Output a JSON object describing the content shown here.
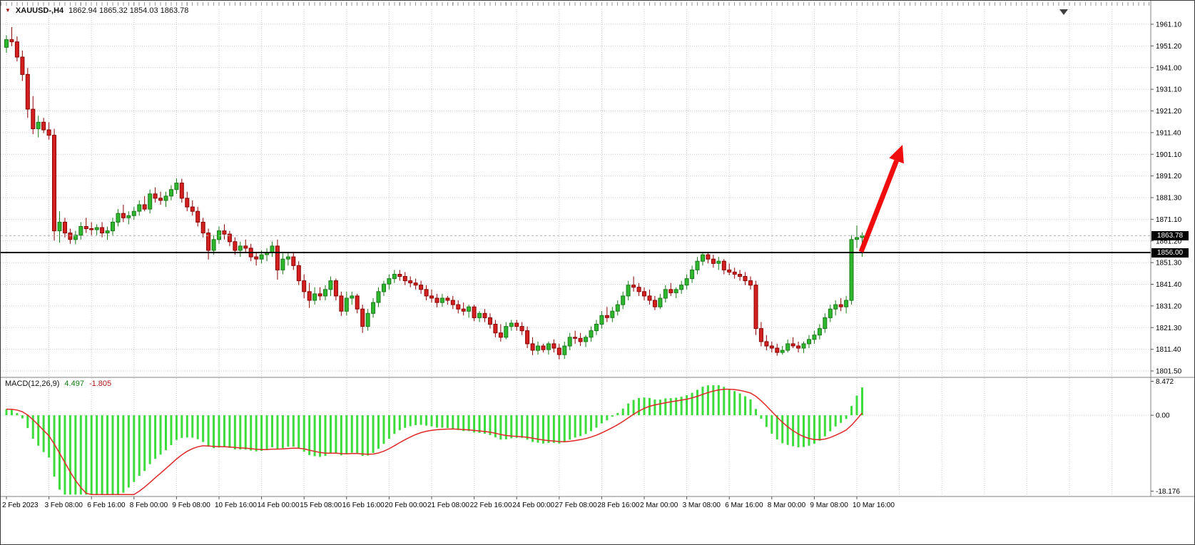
{
  "header": {
    "symbol_period": "XAUUSD-,H4",
    "ohlc_text": "1862.94 1865.32 1854.03 1863.78"
  },
  "price_axis": {
    "current_price_tag": "1863.78",
    "line_price_tag": "1856.00"
  },
  "macd_panel": {
    "label": "MACD(12,26,9)",
    "main_value": "4.497",
    "signal_value": "-1.805"
  },
  "colors": {
    "bull_fill": "#2eb82e",
    "bull_border": "#1a7a1a",
    "bear_fill": "#d42020",
    "bear_border": "#8b0000",
    "macd_histogram": "#3ddc3d",
    "macd_signal": "#e02828",
    "grid": "#c9c9c9",
    "separator": "#808080",
    "arrow": "#f00d0d",
    "line": "#000000",
    "tag_bg": "#000000"
  },
  "chart_data": [
    {
      "type": "candlestick",
      "symbol": "XAUUSD-",
      "timeframe": "H4",
      "bars_per_x_label": 8,
      "x_labels": [
        "2 Feb 2023",
        "3 Feb 08:00",
        "6 Feb 16:00",
        "8 Feb 00:00",
        "9 Feb 08:00",
        "10 Feb 16:00",
        "14 Feb 00:00",
        "15 Feb 08:00",
        "16 Feb 16:00",
        "20 Feb 00:00",
        "21 Feb 08:00",
        "22 Feb 16:00",
        "24 Feb 00:00",
        "27 Feb 08:00",
        "28 Feb 16:00",
        "2 Mar 00:00",
        "3 Mar 08:00",
        "6 Mar 16:00",
        "8 Mar 00:00",
        "9 Mar 08:00",
        "10 Mar 16:00"
      ],
      "y_ticks": [
        "1961.10",
        "1951.20",
        "1941.00",
        "1931.10",
        "1921.20",
        "1911.40",
        "1901.10",
        "1891.20",
        "1881.30",
        "1871.10",
        "1861.20",
        "1851.30",
        "1841.40",
        "1831.20",
        "1821.30",
        "1811.40",
        "1801.50"
      ],
      "y_range": [
        1801.5,
        1961.1
      ],
      "grid": true,
      "ohlc": [
        [
          1950.5,
          1956,
          1948,
          1954
        ],
        [
          1954,
          1959.8,
          1951,
          1953
        ],
        [
          1953,
          1955.5,
          1944,
          1946
        ],
        [
          1946,
          1949,
          1935,
          1938
        ],
        [
          1938,
          1941,
          1918,
          1922
        ],
        [
          1922,
          1928,
          1910.5,
          1913
        ],
        [
          1913,
          1919,
          1909,
          1916
        ],
        [
          1916,
          1918,
          1911,
          1912.5
        ],
        [
          1912.5,
          1916,
          1908,
          1910
        ],
        [
          1910,
          1913,
          1861.5,
          1866
        ],
        [
          1866,
          1875,
          1860.5,
          1870
        ],
        [
          1870,
          1872,
          1863,
          1865
        ],
        [
          1865,
          1867,
          1860,
          1862
        ],
        [
          1862,
          1866,
          1859.8,
          1864
        ],
        [
          1864,
          1870,
          1862,
          1868
        ],
        [
          1868,
          1872,
          1865,
          1867
        ],
        [
          1867,
          1870,
          1864,
          1866.5
        ],
        [
          1866.5,
          1869,
          1864,
          1867.5
        ],
        [
          1867.5,
          1870,
          1863,
          1865
        ],
        [
          1865,
          1868,
          1861.8,
          1866
        ],
        [
          1866,
          1872,
          1864,
          1870
        ],
        [
          1870,
          1876,
          1868,
          1874
        ],
        [
          1874,
          1878,
          1870,
          1872
        ],
        [
          1872,
          1875,
          1869,
          1873
        ],
        [
          1873,
          1877,
          1871,
          1875
        ],
        [
          1875,
          1880,
          1873,
          1878
        ],
        [
          1878,
          1882,
          1875,
          1876
        ],
        [
          1876,
          1885,
          1874,
          1883
        ],
        [
          1883,
          1886,
          1879,
          1881
        ],
        [
          1881,
          1884,
          1878,
          1880
        ],
        [
          1880,
          1884,
          1877,
          1882
        ],
        [
          1882,
          1887,
          1880,
          1885
        ],
        [
          1885,
          1890.2,
          1883,
          1888
        ],
        [
          1888,
          1890,
          1879,
          1881
        ],
        [
          1881,
          1884,
          1875,
          1877
        ],
        [
          1877,
          1880,
          1873,
          1875
        ],
        [
          1875,
          1877,
          1868,
          1870
        ],
        [
          1870,
          1872,
          1863,
          1865
        ],
        [
          1865,
          1867,
          1852.8,
          1857
        ],
        [
          1857,
          1864,
          1855,
          1862
        ],
        [
          1862,
          1868,
          1860,
          1866
        ],
        [
          1866,
          1869,
          1862,
          1864.5
        ],
        [
          1864.5,
          1866,
          1859,
          1861
        ],
        [
          1861,
          1863,
          1855,
          1857
        ],
        [
          1857,
          1861,
          1854,
          1859
        ],
        [
          1859,
          1862,
          1856,
          1858
        ],
        [
          1858,
          1860,
          1852,
          1854
        ],
        [
          1854,
          1856,
          1850,
          1853
        ],
        [
          1853,
          1857,
          1851,
          1855
        ],
        [
          1855,
          1858,
          1852,
          1856
        ],
        [
          1856,
          1861,
          1854,
          1859
        ],
        [
          1859,
          1862,
          1843.5,
          1848
        ],
        [
          1848,
          1856,
          1846,
          1853
        ],
        [
          1853,
          1856,
          1850,
          1854
        ],
        [
          1854,
          1856,
          1848,
          1850
        ],
        [
          1850,
          1852,
          1841,
          1843
        ],
        [
          1843,
          1846,
          1835,
          1838
        ],
        [
          1838,
          1842,
          1830.5,
          1834
        ],
        [
          1834,
          1840,
          1832,
          1837
        ],
        [
          1837,
          1840,
          1834,
          1836
        ],
        [
          1836,
          1841,
          1834,
          1839
        ],
        [
          1839,
          1845,
          1836,
          1843
        ],
        [
          1843,
          1844,
          1834,
          1836
        ],
        [
          1836,
          1838,
          1826.8,
          1829
        ],
        [
          1829,
          1838,
          1827,
          1835
        ],
        [
          1835,
          1838,
          1832,
          1836
        ],
        [
          1836,
          1837,
          1828,
          1830
        ],
        [
          1830,
          1832,
          1819,
          1822
        ],
        [
          1822,
          1830,
          1820,
          1828
        ],
        [
          1828,
          1835,
          1826,
          1833
        ],
        [
          1833,
          1840,
          1831,
          1838
        ],
        [
          1838,
          1843,
          1836,
          1841.5
        ],
        [
          1841.5,
          1846,
          1839,
          1844
        ],
        [
          1844,
          1848,
          1842,
          1846
        ],
        [
          1846,
          1848,
          1843,
          1845
        ],
        [
          1845,
          1847,
          1841,
          1843
        ],
        [
          1843,
          1845,
          1840,
          1842
        ],
        [
          1842,
          1844,
          1839,
          1841
        ],
        [
          1841,
          1843,
          1837,
          1839
        ],
        [
          1839,
          1841,
          1834,
          1836
        ],
        [
          1836,
          1839,
          1833,
          1835
        ],
        [
          1835,
          1837,
          1830.8,
          1833
        ],
        [
          1833,
          1837,
          1831,
          1835
        ],
        [
          1835,
          1836,
          1832,
          1834
        ],
        [
          1834,
          1836,
          1830,
          1832
        ],
        [
          1832,
          1834,
          1828,
          1830
        ],
        [
          1830,
          1833,
          1827,
          1829
        ],
        [
          1829,
          1832,
          1826,
          1831
        ],
        [
          1831,
          1832,
          1824.4,
          1826
        ],
        [
          1826,
          1829,
          1824,
          1828
        ],
        [
          1828,
          1830,
          1824,
          1826
        ],
        [
          1826,
          1828,
          1821,
          1823
        ],
        [
          1823,
          1825,
          1817,
          1819
        ],
        [
          1819,
          1823,
          1815,
          1817
        ],
        [
          1817,
          1824,
          1816,
          1822
        ],
        [
          1822,
          1825,
          1820,
          1823.5
        ],
        [
          1823.5,
          1825,
          1820,
          1822
        ],
        [
          1822,
          1824,
          1818,
          1820
        ],
        [
          1820,
          1822,
          1812,
          1814
        ],
        [
          1814,
          1817,
          1808.8,
          1811
        ],
        [
          1811,
          1815,
          1809,
          1813
        ],
        [
          1813,
          1814,
          1810,
          1811.3
        ],
        [
          1811.3,
          1815,
          1809,
          1814
        ],
        [
          1814,
          1816,
          1810,
          1812
        ],
        [
          1812,
          1814,
          1806.8,
          1809
        ],
        [
          1809,
          1815,
          1807,
          1813
        ],
        [
          1813,
          1819,
          1811,
          1817
        ],
        [
          1817,
          1820,
          1814,
          1816.5
        ],
        [
          1816.5,
          1819,
          1813,
          1815
        ],
        [
          1815,
          1818,
          1812.5,
          1817
        ],
        [
          1817,
          1822,
          1815,
          1820
        ],
        [
          1820,
          1825,
          1818,
          1823
        ],
        [
          1823,
          1829,
          1821,
          1827
        ],
        [
          1827,
          1831,
          1824,
          1826
        ],
        [
          1826,
          1831,
          1824,
          1829
        ],
        [
          1829,
          1834,
          1827,
          1832
        ],
        [
          1832,
          1838,
          1830,
          1836
        ],
        [
          1836,
          1843,
          1834,
          1841
        ],
        [
          1841,
          1845,
          1838,
          1840
        ],
        [
          1840,
          1842,
          1836,
          1838
        ],
        [
          1838,
          1840,
          1834,
          1836
        ],
        [
          1836,
          1839,
          1832,
          1834
        ],
        [
          1834,
          1836,
          1829.5,
          1831
        ],
        [
          1831,
          1837,
          1830,
          1835
        ],
        [
          1835,
          1841,
          1833,
          1839
        ],
        [
          1839,
          1842,
          1836,
          1837.5
        ],
        [
          1837.5,
          1840,
          1835,
          1839
        ],
        [
          1839,
          1843,
          1837,
          1841
        ],
        [
          1841,
          1846,
          1839,
          1844
        ],
        [
          1844,
          1850,
          1842,
          1848
        ],
        [
          1848,
          1854,
          1846,
          1852
        ],
        [
          1852,
          1856.3,
          1850,
          1855
        ],
        [
          1855,
          1856,
          1851,
          1853
        ],
        [
          1853,
          1855,
          1849,
          1851
        ],
        [
          1851,
          1854,
          1848,
          1852
        ],
        [
          1852,
          1853,
          1846,
          1848
        ],
        [
          1848,
          1851,
          1845.6,
          1847
        ],
        [
          1847,
          1849,
          1844,
          1846
        ],
        [
          1846,
          1848,
          1843,
          1845
        ],
        [
          1845,
          1847,
          1841,
          1843
        ],
        [
          1843,
          1845,
          1839,
          1841
        ],
        [
          1841,
          1843,
          1818,
          1821
        ],
        [
          1821,
          1824,
          1812.8,
          1815
        ],
        [
          1815,
          1818,
          1811,
          1813
        ],
        [
          1813,
          1815,
          1810,
          1812
        ],
        [
          1812,
          1814,
          1808.5,
          1810
        ],
        [
          1810,
          1813,
          1809,
          1811
        ],
        [
          1811,
          1816,
          1810,
          1814
        ],
        [
          1814,
          1817,
          1812,
          1813
        ],
        [
          1813,
          1815,
          1810,
          1812
        ],
        [
          1812,
          1815,
          1809.8,
          1814
        ],
        [
          1814,
          1818,
          1812,
          1816
        ],
        [
          1816,
          1820,
          1814,
          1818
        ],
        [
          1818,
          1823,
          1816,
          1821
        ],
        [
          1821,
          1828,
          1819,
          1826
        ],
        [
          1826,
          1832,
          1824,
          1830
        ],
        [
          1830,
          1834,
          1827,
          1832
        ],
        [
          1832,
          1835,
          1829,
          1831
        ],
        [
          1831,
          1836,
          1828,
          1834
        ],
        [
          1834,
          1864,
          1832,
          1862
        ],
        [
          1862,
          1868.5,
          1858,
          1862.9
        ],
        [
          1862.94,
          1865.32,
          1854.03,
          1863.78
        ]
      ],
      "annotations": {
        "horizontal_line": {
          "price": 1856.0,
          "color": "#000000"
        },
        "bid_line": {
          "price": 1863.78
        },
        "arrow": {
          "type": "arrow",
          "direction": "up",
          "color": "#f00d0d"
        }
      }
    },
    {
      "type": "macd",
      "name": "MACD(12,26,9)",
      "fast": 12,
      "slow": 26,
      "signal_period": 9,
      "main_current": 4.497,
      "signal_current": -1.805,
      "y_ticks": [
        "8.472",
        "0.00",
        "-18.176"
      ],
      "y_range": [
        -18.176,
        8.472
      ],
      "computed_from": "chart_data[0].ohlc closes"
    }
  ]
}
